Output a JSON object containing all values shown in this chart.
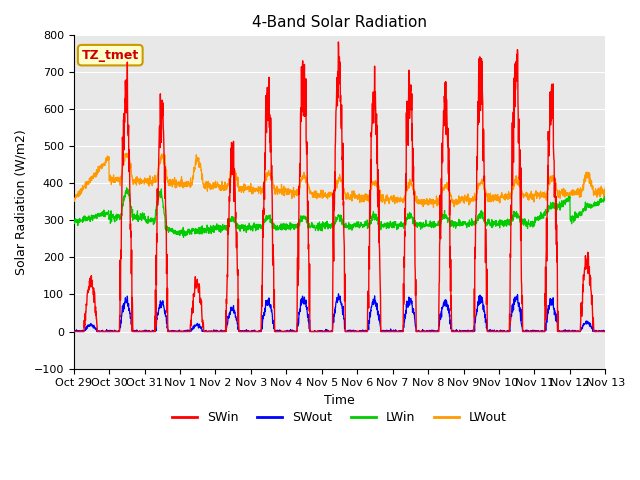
{
  "title": "4-Band Solar Radiation",
  "xlabel": "Time",
  "ylabel": "Solar Radiation (W/m2)",
  "ylim": [
    -100,
    800
  ],
  "x_tick_labels": [
    "Oct 29",
    "Oct 30",
    "Oct 31",
    "Nov 1",
    "Nov 2",
    "Nov 3",
    "Nov 4",
    "Nov 5",
    "Nov 6",
    "Nov 7",
    "Nov 8",
    "Nov 9",
    "Nov 10",
    "Nov 11",
    "Nov 12",
    "Nov 13"
  ],
  "num_days": 15,
  "annotation_text": "TZ_tmet",
  "annotation_bg": "#ffffcc",
  "annotation_border": "#cc9900",
  "annotation_text_color": "#cc0000",
  "legend_entries": [
    "SWin",
    "SWout",
    "LWin",
    "LWout"
  ],
  "line_colors": [
    "#ff0000",
    "#0000ff",
    "#00cc00",
    "#ff9900"
  ],
  "plot_bg_color": "#e8e8e8",
  "grid_color": "#ffffff",
  "title_fontsize": 11,
  "axis_label_fontsize": 9,
  "tick_fontsize": 8
}
